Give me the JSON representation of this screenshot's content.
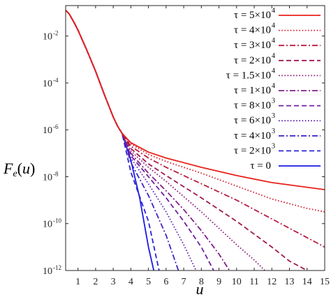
{
  "chart_data": {
    "type": "line",
    "title": "",
    "xlabel": "u",
    "ylabel": "F_e(u)",
    "xlim": [
      0.3,
      15
    ],
    "ylim_log10": [
      -12,
      -0.7
    ],
    "yscale": "log",
    "grid": false,
    "legend_position": "top-right",
    "x_ticks": [
      1,
      2,
      3,
      4,
      5,
      6,
      7,
      8,
      9,
      10,
      11,
      12,
      13,
      14,
      15
    ],
    "y_ticks": [
      {
        "base": "10",
        "exp": "-2",
        "value": -2
      },
      {
        "base": "10",
        "exp": "-4",
        "value": -4
      },
      {
        "base": "10",
        "exp": "-6",
        "value": -6
      },
      {
        "base": "10",
        "exp": "-8",
        "value": -8
      },
      {
        "base": "10",
        "exp": "-10",
        "value": -10
      },
      {
        "base": "10",
        "exp": "-12",
        "value": -12
      }
    ],
    "core_curve_log10": [
      [
        0.3,
        -0.9
      ],
      [
        0.5,
        -1.05
      ],
      [
        0.8,
        -1.45
      ],
      [
        1.0,
        -1.75
      ],
      [
        1.5,
        -2.6
      ],
      [
        2.0,
        -3.5
      ],
      [
        2.5,
        -4.5
      ],
      [
        3.0,
        -5.45
      ],
      [
        3.25,
        -5.85
      ],
      [
        3.5,
        -6.15
      ]
    ],
    "series": [
      {
        "label": "τ = 5×10^4",
        "name_base": "τ = 5×10",
        "name_exp": "4",
        "color": "#e8221b",
        "dash": "solid",
        "tail_log10": [
          [
            3.5,
            -6.15
          ],
          [
            4,
            -6.55
          ],
          [
            5,
            -6.95
          ],
          [
            6,
            -7.2
          ],
          [
            8,
            -7.6
          ],
          [
            10,
            -7.95
          ],
          [
            12,
            -8.25
          ],
          [
            14,
            -8.45
          ],
          [
            15,
            -8.55
          ]
        ]
      },
      {
        "label": "τ = 4×10^4",
        "name_base": "τ = 4×10",
        "name_exp": "4",
        "color": "#d02030",
        "dash": "dotted",
        "tail_log10": [
          [
            3.5,
            -6.25
          ],
          [
            4,
            -6.6
          ],
          [
            5,
            -7.05
          ],
          [
            6,
            -7.35
          ],
          [
            8,
            -7.85
          ],
          [
            10,
            -8.4
          ],
          [
            12,
            -8.95
          ],
          [
            14,
            -9.35
          ],
          [
            15,
            -9.5
          ]
        ]
      },
      {
        "label": "τ = 3×10^4",
        "name_base": "τ = 3×10",
        "name_exp": "4",
        "color": "#b81c40",
        "dash": "dashdot",
        "tail_log10": [
          [
            3.5,
            -6.3
          ],
          [
            4,
            -6.7
          ],
          [
            5,
            -7.2
          ],
          [
            6,
            -7.6
          ],
          [
            8,
            -8.3
          ],
          [
            10,
            -9.0
          ],
          [
            12,
            -9.8
          ],
          [
            14,
            -10.6
          ],
          [
            15,
            -11.0
          ]
        ]
      },
      {
        "label": "τ = 2×10^4",
        "name_base": "τ = 2×10",
        "name_exp": "4",
        "color": "#a01850",
        "dash": "dashed",
        "tail_log10": [
          [
            3.5,
            -6.4
          ],
          [
            4,
            -6.8
          ],
          [
            5,
            -7.45
          ],
          [
            6,
            -7.95
          ],
          [
            8,
            -8.9
          ],
          [
            10,
            -9.9
          ],
          [
            12,
            -11.0
          ],
          [
            13,
            -11.6
          ],
          [
            14,
            -12.0
          ]
        ]
      },
      {
        "label": "τ = 1.5×10^4",
        "name_base": "τ = 1.5×10",
        "name_exp": "4",
        "color": "#8c1c78",
        "dash": "dotted",
        "tail_log10": [
          [
            3.5,
            -6.45
          ],
          [
            4,
            -6.9
          ],
          [
            5,
            -7.6
          ],
          [
            6,
            -8.2
          ],
          [
            8,
            -9.5
          ],
          [
            10,
            -10.9
          ],
          [
            11,
            -11.55
          ],
          [
            11.6,
            -12.0
          ]
        ]
      },
      {
        "label": "τ = 1×10^4",
        "name_base": "τ = 1×10",
        "name_exp": "4",
        "color": "#80208a",
        "dash": "dashdot",
        "tail_log10": [
          [
            3.5,
            -6.5
          ],
          [
            4,
            -7.0
          ],
          [
            5,
            -7.85
          ],
          [
            6,
            -8.6
          ],
          [
            7,
            -9.4
          ],
          [
            8,
            -10.3
          ],
          [
            9,
            -11.3
          ],
          [
            9.6,
            -12.0
          ]
        ]
      },
      {
        "label": "τ = 8×10^3",
        "name_base": "τ = 8×10",
        "name_exp": "3",
        "color": "#7020a0",
        "dash": "dashed",
        "tail_log10": [
          [
            3.5,
            -6.55
          ],
          [
            4,
            -7.1
          ],
          [
            5,
            -8.0
          ],
          [
            6,
            -8.9
          ],
          [
            7,
            -9.9
          ],
          [
            8,
            -11.0
          ],
          [
            8.7,
            -12.0
          ]
        ]
      },
      {
        "label": "τ = 6×10^3",
        "name_base": "τ = 6×10",
        "name_exp": "3",
        "color": "#5c22b4",
        "dash": "dotted",
        "tail_log10": [
          [
            3.5,
            -6.6
          ],
          [
            4,
            -7.2
          ],
          [
            5,
            -8.3
          ],
          [
            6,
            -9.5
          ],
          [
            7,
            -10.9
          ],
          [
            7.7,
            -12.0
          ]
        ]
      },
      {
        "label": "τ = 4×10^3",
        "name_base": "τ = 4×10",
        "name_exp": "3",
        "color": "#4422c8",
        "dash": "dashdot",
        "tail_log10": [
          [
            3.5,
            -6.7
          ],
          [
            4,
            -7.4
          ],
          [
            5,
            -8.8
          ],
          [
            6,
            -10.5
          ],
          [
            6.7,
            -12.0
          ]
        ]
      },
      {
        "label": "τ = 2×10^3",
        "name_base": "τ = 2×10",
        "name_exp": "3",
        "color": "#2a22d8",
        "dash": "dashed",
        "tail_log10": [
          [
            3.5,
            -6.85
          ],
          [
            4,
            -7.8
          ],
          [
            5,
            -9.9
          ],
          [
            5.6,
            -12.0
          ]
        ]
      },
      {
        "label": "τ = 0",
        "name_base": "τ = 0",
        "name_exp": "",
        "color": "#1a1ae6",
        "dash": "solid",
        "tail_log10": [
          [
            3.5,
            -6.2
          ],
          [
            4,
            -7.3
          ],
          [
            4.5,
            -8.9
          ],
          [
            5,
            -11.0
          ],
          [
            5.3,
            -12.0
          ]
        ]
      }
    ]
  }
}
